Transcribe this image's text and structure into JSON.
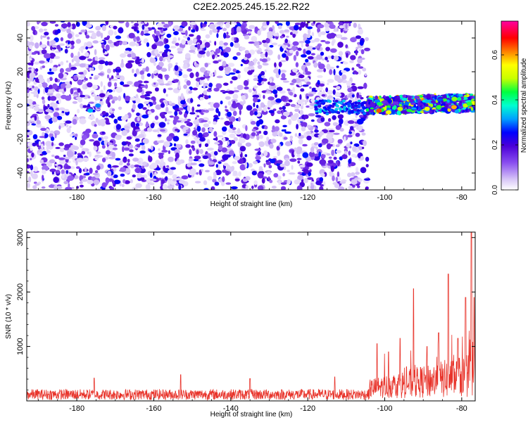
{
  "title": "C2E2.2025.245.15.22.R22",
  "chart_data": [
    {
      "type": "heatmap",
      "xlabel": "Height of straight line (km)",
      "ylabel": "Frequency (Hz)",
      "xlim": [
        -193,
        -76.5
      ],
      "ylim": [
        -50,
        50
      ],
      "x_ticks": [
        -180,
        -160,
        -140,
        -120,
        -100,
        -80
      ],
      "y_ticks": [
        -40,
        -20,
        0,
        20,
        40
      ],
      "colorbar": {
        "label": "Normalized spectral amplitude",
        "range": [
          0,
          0.75
        ],
        "ticks": [
          0.0,
          0.2,
          0.4,
          0.6
        ],
        "colormap": [
          "#ffffff",
          "#d9c8f7",
          "#8a4ff0",
          "#4b00d8",
          "#0000ff",
          "#00a0ff",
          "#00ffd0",
          "#00ff40",
          "#c8ff00",
          "#ffff00",
          "#ff8000",
          "#ff0000",
          "#ff00a0"
        ]
      },
      "description_values": {
        "background_noise_region_km": [
          -193,
          -104.5
        ],
        "signal_region_km": [
          -104.5,
          -76.5
        ],
        "signal_center_frequency_hz": 0,
        "signal_band_half_width_hz": 5,
        "peak_amplitude": 0.7
      }
    },
    {
      "type": "line",
      "xlabel": "Height of straight line (km)",
      "ylabel": "SNR (10 * v/v)",
      "xlim": [
        -193,
        -76.5
      ],
      "ylim": [
        0,
        3100
      ],
      "x_ticks": [
        -180,
        -160,
        -140,
        -120,
        -100,
        -80
      ],
      "y_ticks": [
        1000,
        2000,
        3000
      ],
      "series": [
        {
          "color": "#e8332a",
          "baseline_until_km": -104,
          "baseline_range": [
            20,
            300
          ],
          "peaks": [
            {
              "x": -175.5,
              "y": 420
            },
            {
              "x": -153,
              "y": 480
            },
            {
              "x": -135,
              "y": 410
            },
            {
              "x": -113,
              "y": 440
            },
            {
              "x": -102,
              "y": 1050
            },
            {
              "x": -99,
              "y": 900
            },
            {
              "x": -96,
              "y": 1150
            },
            {
              "x": -92.5,
              "y": 2060
            },
            {
              "x": -89,
              "y": 1000
            },
            {
              "x": -86,
              "y": 1250
            },
            {
              "x": -83.5,
              "y": 2330
            },
            {
              "x": -81,
              "y": 1150
            },
            {
              "x": -79,
              "y": 1900
            },
            {
              "x": -77.5,
              "y": 3100
            },
            {
              "x": -76.8,
              "y": 1900
            }
          ]
        }
      ]
    }
  ]
}
